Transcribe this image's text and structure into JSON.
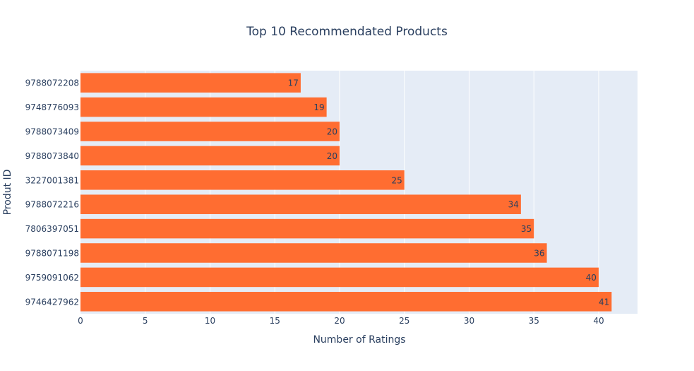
{
  "chart_data": {
    "type": "bar",
    "orientation": "horizontal",
    "title": "Top 10 Recommendated Products",
    "xlabel": "Number of Ratings",
    "ylabel": "Produt ID",
    "categories": [
      "9788072208",
      "9748776093",
      "9788073409",
      "9788073840",
      "3227001381",
      "9788072216",
      "7806397051",
      "9788071198",
      "9759091062",
      "9746427962"
    ],
    "values": [
      17,
      19,
      20,
      20,
      25,
      34,
      35,
      36,
      40,
      41
    ],
    "xlim": [
      0,
      43
    ],
    "xticks": [
      0,
      5,
      10,
      15,
      20,
      25,
      30,
      35,
      40
    ],
    "grid": true,
    "bar_color": "#ff6d31",
    "plot_background": "#e5ecf6",
    "text_color": "#2a3f5f"
  }
}
